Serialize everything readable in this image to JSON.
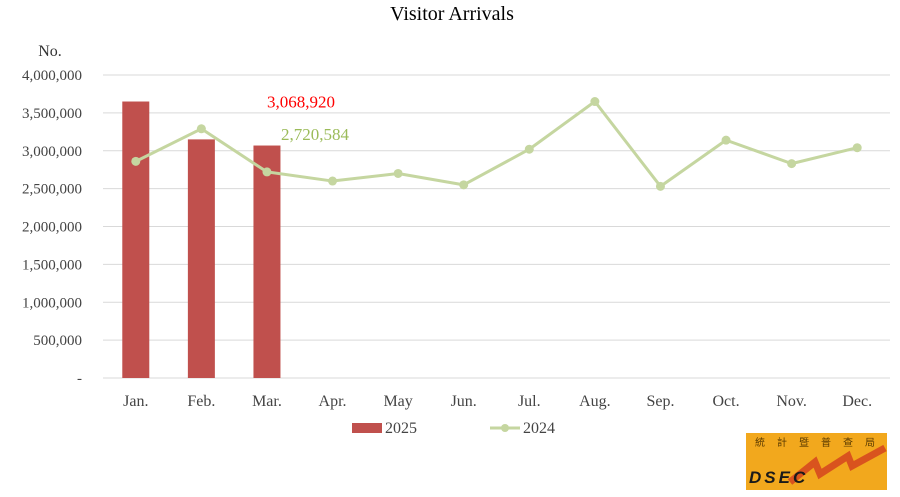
{
  "chart_data": {
    "type": "bar",
    "title": "Visitor Arrivals",
    "ylabel": "No.",
    "xlabel": "",
    "categories": [
      "Jan.",
      "Feb.",
      "Mar.",
      "Apr.",
      "May",
      "Jun.",
      "Jul.",
      "Aug.",
      "Sep.",
      "Oct.",
      "Nov.",
      "Dec."
    ],
    "ylim": [
      0,
      4000000
    ],
    "yticks": [
      0,
      500000,
      1000000,
      1500000,
      2000000,
      2500000,
      3000000,
      3500000,
      4000000
    ],
    "ytick_labels": [
      "-",
      "500,000",
      "1,000,000",
      "1,500,000",
      "2,000,000",
      "2,500,000",
      "3,000,000",
      "3,500,000",
      "4,000,000"
    ],
    "grid": "horizontal",
    "legend_position": "bottom",
    "series": [
      {
        "name": "2025",
        "type": "bar",
        "color": "#c0504d",
        "values": [
          3650000,
          3150000,
          3068920,
          null,
          null,
          null,
          null,
          null,
          null,
          null,
          null,
          null
        ]
      },
      {
        "name": "2024",
        "type": "line",
        "color": "#c5d6a0",
        "values": [
          2860000,
          3290000,
          2720584,
          2600000,
          2700000,
          2550000,
          3020000,
          3650000,
          2530000,
          3140000,
          2830000,
          3040000
        ]
      }
    ],
    "annotations": [
      {
        "text": "3,068,920",
        "series": "2025",
        "category": "Mar.",
        "color": "#ff0000"
      },
      {
        "text": "2,720,584",
        "series": "2024",
        "category": "Mar.",
        "color": "#9bbb59"
      }
    ]
  },
  "logo": {
    "text": "DSEC",
    "glyphs": [
      "統",
      "計",
      "暨",
      "普",
      "查",
      "局"
    ],
    "bg_color": "#f2a81d",
    "accent_color": "#d9531e"
  }
}
